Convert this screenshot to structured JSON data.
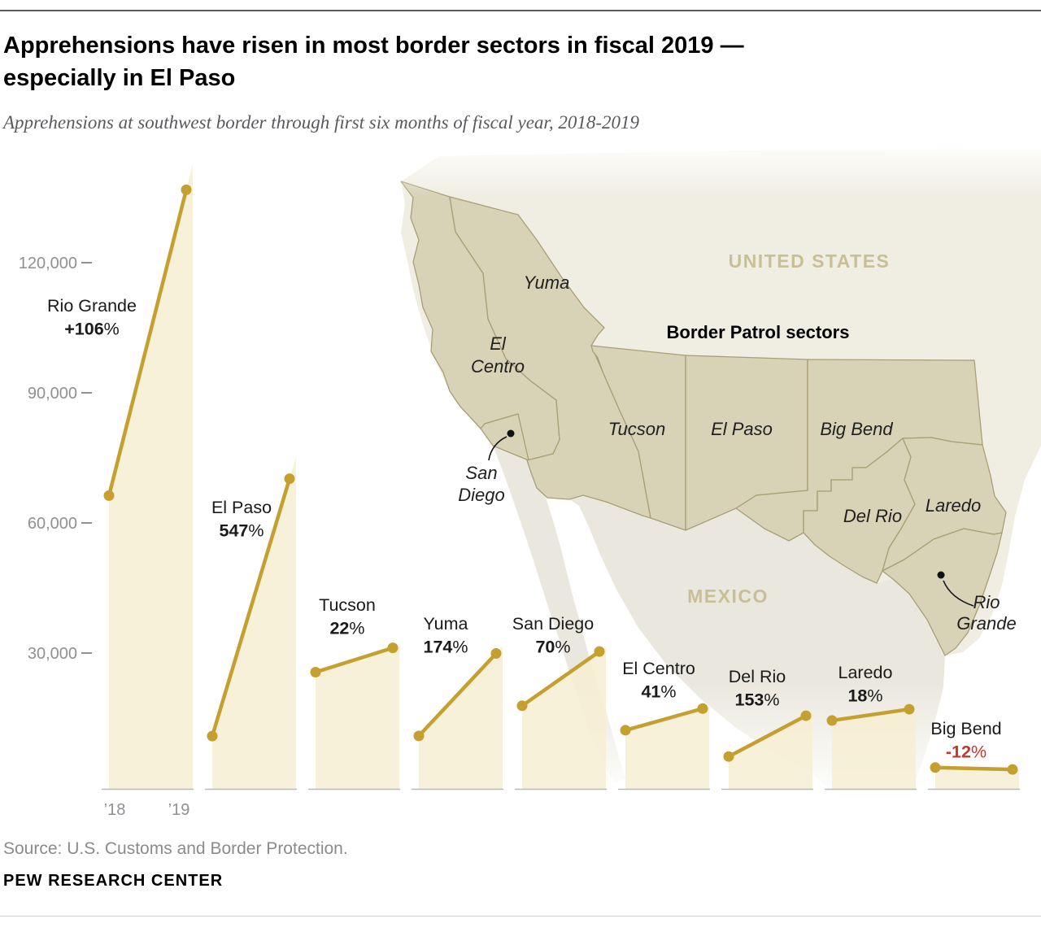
{
  "header": {
    "title_lines": [
      "Apprehensions have risen in most border sectors in fiscal 2019 —",
      "especially in El Paso"
    ],
    "subtitle": "Apprehensions at southwest border through first six months of fiscal year, 2018-2019"
  },
  "chart_data": {
    "type": "area",
    "title": "Apprehensions at southwest border through first six months of fiscal year, 2018-2019",
    "x": [
      "’18",
      "’19"
    ],
    "ylim": [
      0,
      140000
    ],
    "grid": false,
    "yticks": [
      {
        "value": 30000,
        "label": "30,000"
      },
      {
        "value": 60000,
        "label": "60,000"
      },
      {
        "value": 90000,
        "label": "90,000"
      },
      {
        "value": 120000,
        "label": "120,000"
      }
    ],
    "series": [
      {
        "name": "Rio Grande",
        "change_label": "+106%",
        "values": [
          66300,
          136800
        ]
      },
      {
        "name": "El Paso",
        "change_label": "547%",
        "values": [
          10850,
          70200
        ]
      },
      {
        "name": "Tucson",
        "change_label": "22%",
        "values": [
          25600,
          31200
        ]
      },
      {
        "name": "Yuma",
        "change_label": "174%",
        "values": [
          10900,
          29900
        ]
      },
      {
        "name": "San Diego",
        "change_label": "70%",
        "values": [
          17850,
          30350
        ]
      },
      {
        "name": "El Centro",
        "change_label": "41%",
        "values": [
          12200,
          17200
        ]
      },
      {
        "name": "Del Rio",
        "change_label": "153%",
        "values": [
          6150,
          15550
        ]
      },
      {
        "name": "Laredo",
        "change_label": "18%",
        "values": [
          14450,
          17050
        ]
      },
      {
        "name": "Big Bend",
        "change_label": "-12%",
        "values": [
          3600,
          3170
        ]
      }
    ]
  },
  "map": {
    "united_states_label": "UNITED STATES",
    "mexico_label": "MEXICO",
    "legend_label": "Border Patrol sectors",
    "sector_labels": [
      "Yuma",
      "El Centro",
      "Tucson",
      "El Paso",
      "Big Bend",
      "Del Rio",
      "Laredo"
    ],
    "callouts": [
      "San Diego",
      "Rio Grande"
    ]
  },
  "footer": {
    "source": "Source: U.S. Customs and Border Protection.",
    "brand": "PEW RESEARCH CENTER"
  },
  "colors": {
    "gold_line": "#C59F30",
    "area_fill": "#F7EED2",
    "negative_red": "#C23A2E",
    "label_dark": "#1a1a1a",
    "baseline_gray": "#b9b9b9",
    "tick_gray": "#8f9096",
    "sector_fill": "#D8D2B6",
    "sector_stroke": "#A89F76",
    "us_fill": "#F0EEE3",
    "mexico_fill": "#EAE8DE",
    "country_label_tan": "#C9BF96",
    "callout_black": "#111111"
  }
}
